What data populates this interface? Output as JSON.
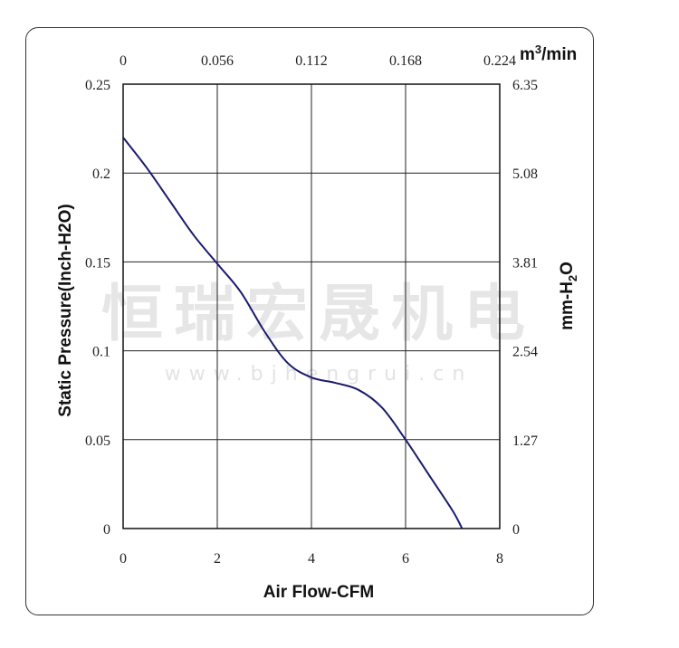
{
  "chart_data": {
    "type": "line",
    "xlabel": "Air Flow-CFM",
    "ylabel": "Static Pressure(Inch-H2O)",
    "y2label": "mm-H2O",
    "x2label": "m³/min",
    "x2label_base": "m",
    "x2label_sup": "3",
    "x2label_rest": "/min",
    "y2label_base": "mm-H",
    "y2label_sub": "2",
    "y2label_rest": "O",
    "xlim": [
      0,
      8
    ],
    "ylim": [
      0,
      0.25
    ],
    "x_ticks": [
      "0",
      "2",
      "4",
      "6",
      "8"
    ],
    "y_ticks": [
      "0",
      "0.05",
      "0.1",
      "0.15",
      "0.2",
      "0.25"
    ],
    "x2_ticks": [
      "0",
      "0.056",
      "0.112",
      "0.168",
      "0.224"
    ],
    "y2_ticks": [
      "0",
      "1.27",
      "2.54",
      "3.81",
      "5.08",
      "6.35"
    ],
    "grid": true,
    "line_color": "#1a1a6e",
    "series": [
      {
        "x": [
          0,
          0.5,
          1.0,
          1.5,
          2.0,
          2.5,
          3.0,
          3.5,
          4.0,
          4.5,
          5.0,
          5.5,
          6.0,
          6.5,
          7.0,
          7.2
        ],
        "y": [
          0.22,
          0.203,
          0.184,
          0.165,
          0.149,
          0.133,
          0.111,
          0.093,
          0.085,
          0.082,
          0.078,
          0.068,
          0.05,
          0.03,
          0.01,
          0.0
        ]
      }
    ]
  },
  "watermark": {
    "text": "恒瑞宏晟机电",
    "url": "www.bjhengrui.cn"
  }
}
